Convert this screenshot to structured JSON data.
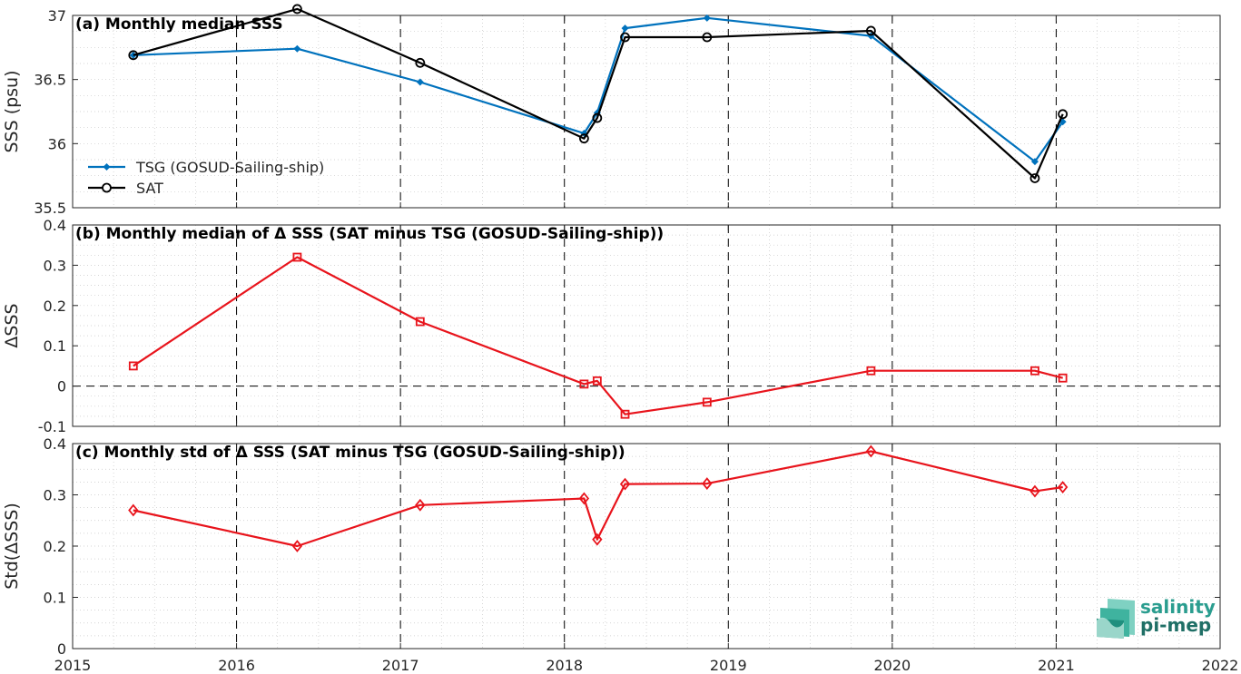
{
  "x_axis": {
    "xlim": [
      2015,
      2022
    ],
    "ticks": [
      2015,
      2016,
      2017,
      2018,
      2019,
      2020,
      2021,
      2022
    ],
    "tick_labels": [
      "2015",
      "2016",
      "2017",
      "2018",
      "2019",
      "2020",
      "2021",
      "2022"
    ]
  },
  "year_lines": [
    2016,
    2017,
    2018,
    2019,
    2020,
    2021
  ],
  "colors": {
    "tsg": "#0072BD",
    "sat": "#000000",
    "delta": "#E8141C",
    "axes": "#262626"
  },
  "logo": {
    "line1": "salinity",
    "line2": "pi-mep"
  },
  "chart_data": [
    {
      "id": "a",
      "type": "line",
      "title": "(a) Monthly median SSS",
      "ylabel": "SSS (psu)",
      "ylim": [
        35.5,
        37
      ],
      "yticks": [
        35.5,
        36,
        36.5,
        37
      ],
      "ytick_labels": [
        "35.5",
        "36",
        "36.5",
        "37"
      ],
      "legend": "top-left",
      "series": [
        {
          "name": "TSG (GOSUD-Sailing-ship)",
          "marker": "dot",
          "x": [
            2015.37,
            2016.37,
            2017.12,
            2018.12,
            2018.2,
            2018.37,
            2018.87,
            2019.87,
            2020.87,
            2021.04
          ],
          "y": [
            36.69,
            36.74,
            36.48,
            36.08,
            36.24,
            36.9,
            36.98,
            36.84,
            35.86,
            36.17
          ]
        },
        {
          "name": "SAT",
          "marker": "circle",
          "x": [
            2015.37,
            2016.37,
            2017.12,
            2018.12,
            2018.2,
            2018.37,
            2018.87,
            2019.87,
            2020.87,
            2021.04
          ],
          "y": [
            36.69,
            37.05,
            36.63,
            36.04,
            36.2,
            36.83,
            36.83,
            36.88,
            35.73,
            36.23
          ]
        }
      ]
    },
    {
      "id": "b",
      "type": "line",
      "title": "(b) Monthly median of Δ SSS (SAT minus TSG (GOSUD-Sailing-ship))",
      "ylabel": "ΔSSS",
      "ylim": [
        -0.1,
        0.4
      ],
      "yticks": [
        -0.1,
        0,
        0.1,
        0.2,
        0.3,
        0.4
      ],
      "ytick_labels": [
        "-0.1",
        "0",
        "0.1",
        "0.2",
        "0.3",
        "0.4"
      ],
      "zero_line": true,
      "series": [
        {
          "marker": "square",
          "x": [
            2015.37,
            2016.37,
            2017.12,
            2018.12,
            2018.2,
            2018.37,
            2018.87,
            2019.87,
            2020.87,
            2021.04
          ],
          "y": [
            0.05,
            0.32,
            0.16,
            0.005,
            0.013,
            -0.07,
            -0.04,
            0.038,
            0.038,
            0.02
          ]
        }
      ]
    },
    {
      "id": "c",
      "type": "line",
      "title": "(c) Monthly std of Δ SSS (SAT minus TSG (GOSUD-Sailing-ship))",
      "ylabel": "Std(ΔSSS)",
      "ylim": [
        0,
        0.4
      ],
      "yticks": [
        0,
        0.1,
        0.2,
        0.3,
        0.4
      ],
      "ytick_labels": [
        "0",
        "0.1",
        "0.2",
        "0.3",
        "0.4"
      ],
      "series": [
        {
          "marker": "diamond",
          "x": [
            2015.37,
            2016.37,
            2017.12,
            2018.12,
            2018.2,
            2018.37,
            2018.87,
            2019.87,
            2020.87,
            2021.04
          ],
          "y": [
            0.27,
            0.2,
            0.28,
            0.293,
            0.213,
            0.321,
            0.322,
            0.385,
            0.307,
            0.315
          ]
        }
      ]
    }
  ]
}
